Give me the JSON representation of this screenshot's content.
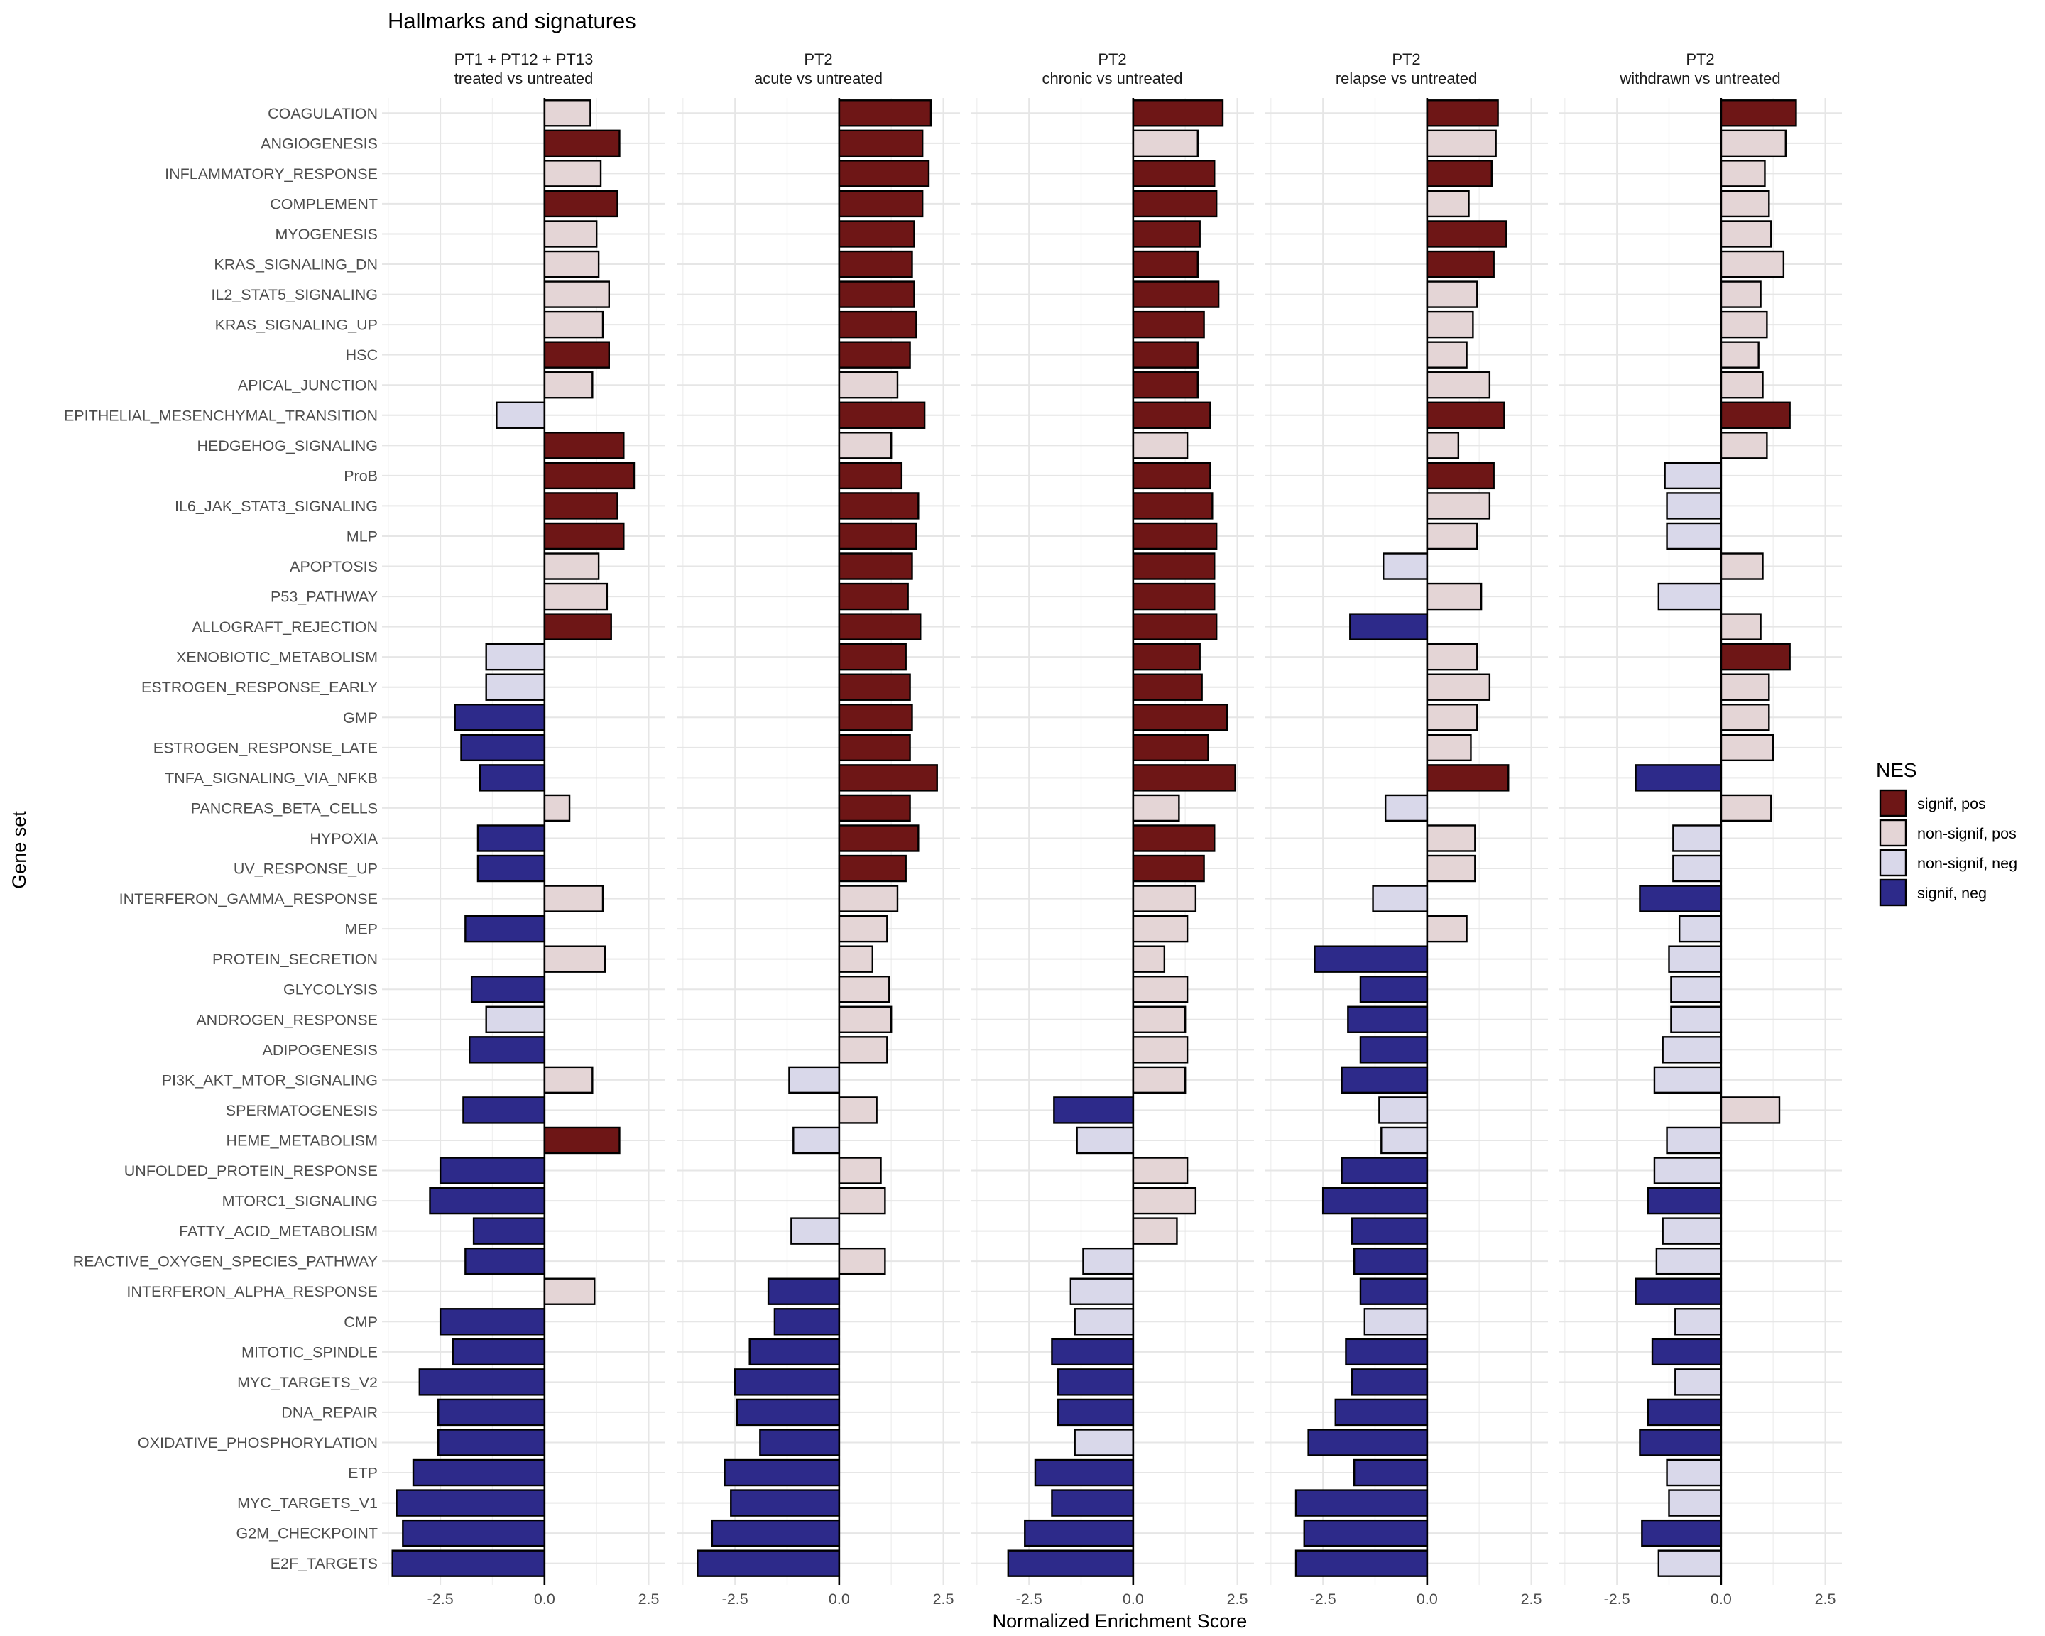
{
  "chart_data": {
    "type": "bar",
    "orientation": "horizontal",
    "title": "Hallmarks and signatures",
    "xlabel": "Normalized Enrichment Score",
    "ylabel": "Gene set",
    "xlim": [
      -3.9,
      2.9
    ],
    "x_ticks": [
      -2.5,
      0,
      2.5
    ],
    "x_tick_labels": [
      "-2.5",
      "0.0",
      "2.5"
    ],
    "legend": {
      "title": "NES",
      "position": "right",
      "entries": [
        {
          "key": "sp",
          "label": "signif, pos",
          "color": "#6e1616"
        },
        {
          "key": "np",
          "label": "non-signif, pos",
          "color": "#e4d5d6"
        },
        {
          "key": "nn",
          "label": "non-signif, neg",
          "color": "#d9d8ea"
        },
        {
          "key": "sn",
          "label": "signif, neg",
          "color": "#2d2a8a"
        }
      ]
    },
    "categories": [
      "COAGULATION",
      "ANGIOGENESIS",
      "INFLAMMATORY_RESPONSE",
      "COMPLEMENT",
      "MYOGENESIS",
      "KRAS_SIGNALING_DN",
      "IL2_STAT5_SIGNALING",
      "KRAS_SIGNALING_UP",
      "HSC",
      "APICAL_JUNCTION",
      "EPITHELIAL_MESENCHYMAL_TRANSITION",
      "HEDGEHOG_SIGNALING",
      "ProB",
      "IL6_JAK_STAT3_SIGNALING",
      "MLP",
      "APOPTOSIS",
      "P53_PATHWAY",
      "ALLOGRAFT_REJECTION",
      "XENOBIOTIC_METABOLISM",
      "ESTROGEN_RESPONSE_EARLY",
      "GMP",
      "ESTROGEN_RESPONSE_LATE",
      "TNFA_SIGNALING_VIA_NFKB",
      "PANCREAS_BETA_CELLS",
      "HYPOXIA",
      "UV_RESPONSE_UP",
      "INTERFERON_GAMMA_RESPONSE",
      "MEP",
      "PROTEIN_SECRETION",
      "GLYCOLYSIS",
      "ANDROGEN_RESPONSE",
      "ADIPOGENESIS",
      "PI3K_AKT_MTOR_SIGNALING",
      "SPERMATOGENESIS",
      "HEME_METABOLISM",
      "UNFOLDED_PROTEIN_RESPONSE",
      "MTORC1_SIGNALING",
      "FATTY_ACID_METABOLISM",
      "REACTIVE_OXYGEN_SPECIES_PATHWAY",
      "INTERFERON_ALPHA_RESPONSE",
      "CMP",
      "MITOTIC_SPINDLE",
      "MYC_TARGETS_V2",
      "DNA_REPAIR",
      "OXIDATIVE_PHOSPHORYLATION",
      "ETP",
      "MYC_TARGETS_V1",
      "G2M_CHECKPOINT",
      "E2F_TARGETS"
    ],
    "series": [
      {
        "name": "PT1 + PT12 + PT13 treated vs untreated",
        "strip_line1": "PT1 + PT12 + PT13",
        "strip_line2": "treated vs untreated",
        "values": [
          1.1,
          1.8,
          1.35,
          1.75,
          1.25,
          1.3,
          1.55,
          1.4,
          1.55,
          1.15,
          -1.15,
          1.9,
          2.15,
          1.75,
          1.9,
          1.3,
          1.5,
          1.6,
          -1.4,
          -1.4,
          -2.15,
          -2.0,
          -1.55,
          0.6,
          -1.6,
          -1.6,
          1.4,
          -1.9,
          1.45,
          -1.75,
          -1.4,
          -1.8,
          1.15,
          -1.95,
          1.8,
          -2.5,
          -2.75,
          -1.7,
          -1.9,
          1.2,
          -2.5,
          -2.2,
          -3.0,
          -2.55,
          -2.55,
          -3.15,
          -3.55,
          -3.4,
          -3.65
        ],
        "status": [
          "np",
          "sp",
          "np",
          "sp",
          "np",
          "np",
          "np",
          "np",
          "sp",
          "np",
          "nn",
          "sp",
          "sp",
          "sp",
          "sp",
          "np",
          "np",
          "sp",
          "nn",
          "nn",
          "sn",
          "sn",
          "sn",
          "np",
          "sn",
          "sn",
          "np",
          "sn",
          "np",
          "sn",
          "nn",
          "sn",
          "np",
          "sn",
          "sp",
          "sn",
          "sn",
          "sn",
          "sn",
          "np",
          "sn",
          "sn",
          "sn",
          "sn",
          "sn",
          "sn",
          "sn",
          "sn",
          "sn"
        ]
      },
      {
        "name": "PT2 acute vs untreated",
        "strip_line1": "PT2",
        "strip_line2": "acute vs untreated",
        "values": [
          2.2,
          2.0,
          2.15,
          2.0,
          1.8,
          1.75,
          1.8,
          1.85,
          1.7,
          1.4,
          2.05,
          1.25,
          1.5,
          1.9,
          1.85,
          1.75,
          1.65,
          1.95,
          1.6,
          1.7,
          1.75,
          1.7,
          2.35,
          1.7,
          1.9,
          1.6,
          1.4,
          1.15,
          0.8,
          1.2,
          1.25,
          1.15,
          -1.2,
          0.9,
          -1.1,
          1.0,
          1.1,
          -1.15,
          1.1,
          -1.7,
          -1.55,
          -2.15,
          -2.5,
          -2.45,
          -1.9,
          -2.75,
          -2.6,
          -3.05,
          -3.4
        ],
        "status": [
          "sp",
          "sp",
          "sp",
          "sp",
          "sp",
          "sp",
          "sp",
          "sp",
          "sp",
          "np",
          "sp",
          "np",
          "sp",
          "sp",
          "sp",
          "sp",
          "sp",
          "sp",
          "sp",
          "sp",
          "sp",
          "sp",
          "sp",
          "sp",
          "sp",
          "sp",
          "np",
          "np",
          "np",
          "np",
          "np",
          "np",
          "nn",
          "np",
          "nn",
          "np",
          "np",
          "nn",
          "np",
          "sn",
          "sn",
          "sn",
          "sn",
          "sn",
          "sn",
          "sn",
          "sn",
          "sn",
          "sn"
        ]
      },
      {
        "name": "PT2 chronic vs untreated",
        "strip_line1": "PT2",
        "strip_line2": "chronic vs untreated",
        "values": [
          2.15,
          1.55,
          1.95,
          2.0,
          1.6,
          1.55,
          2.05,
          1.7,
          1.55,
          1.55,
          1.85,
          1.3,
          1.85,
          1.9,
          2.0,
          1.95,
          1.95,
          2.0,
          1.6,
          1.65,
          2.25,
          1.8,
          2.45,
          1.1,
          1.95,
          1.7,
          1.5,
          1.3,
          0.75,
          1.3,
          1.25,
          1.3,
          1.25,
          -1.9,
          -1.35,
          1.3,
          1.5,
          1.05,
          -1.2,
          -1.5,
          -1.4,
          -1.95,
          -1.8,
          -1.8,
          -1.4,
          -2.35,
          -1.95,
          -2.6,
          -3.0
        ],
        "status": [
          "sp",
          "np",
          "sp",
          "sp",
          "sp",
          "sp",
          "sp",
          "sp",
          "sp",
          "sp",
          "sp",
          "np",
          "sp",
          "sp",
          "sp",
          "sp",
          "sp",
          "sp",
          "sp",
          "sp",
          "sp",
          "sp",
          "sp",
          "np",
          "sp",
          "sp",
          "np",
          "np",
          "np",
          "np",
          "np",
          "np",
          "np",
          "sn",
          "nn",
          "np",
          "np",
          "np",
          "nn",
          "nn",
          "nn",
          "sn",
          "sn",
          "sn",
          "nn",
          "sn",
          "sn",
          "sn",
          "sn"
        ]
      },
      {
        "name": "PT2 relapse vs untreated",
        "strip_line1": "PT2",
        "strip_line2": "relapse vs untreated",
        "values": [
          1.7,
          1.65,
          1.55,
          1.0,
          1.9,
          1.6,
          1.2,
          1.1,
          0.95,
          1.5,
          1.85,
          0.75,
          1.6,
          1.5,
          1.2,
          -1.05,
          1.3,
          -1.85,
          1.2,
          1.5,
          1.2,
          1.05,
          1.95,
          -1.0,
          1.15,
          1.15,
          -1.3,
          0.95,
          -2.7,
          -1.6,
          -1.9,
          -1.6,
          -2.05,
          -1.15,
          -1.1,
          -2.05,
          -2.5,
          -1.8,
          -1.75,
          -1.6,
          -1.5,
          -1.95,
          -1.8,
          -2.2,
          -2.85,
          -1.75,
          -3.15,
          -2.95,
          -3.15
        ],
        "status": [
          "sp",
          "np",
          "sp",
          "np",
          "sp",
          "sp",
          "np",
          "np",
          "np",
          "np",
          "sp",
          "np",
          "sp",
          "np",
          "np",
          "nn",
          "np",
          "sn",
          "np",
          "np",
          "np",
          "np",
          "sp",
          "nn",
          "np",
          "np",
          "nn",
          "np",
          "sn",
          "sn",
          "sn",
          "sn",
          "sn",
          "nn",
          "nn",
          "sn",
          "sn",
          "sn",
          "sn",
          "sn",
          "nn",
          "sn",
          "sn",
          "sn",
          "sn",
          "sn",
          "sn",
          "sn",
          "sn"
        ]
      },
      {
        "name": "PT2 withdrawn vs untreated",
        "strip_line1": "PT2",
        "strip_line2": "withdrawn vs untreated",
        "values": [
          1.8,
          1.55,
          1.05,
          1.15,
          1.2,
          1.5,
          0.95,
          1.1,
          0.9,
          1.0,
          1.65,
          1.1,
          -1.35,
          -1.3,
          -1.3,
          1.0,
          -1.5,
          0.95,
          1.65,
          1.15,
          1.15,
          1.25,
          -2.05,
          1.2,
          -1.15,
          -1.15,
          -1.95,
          -1.0,
          -1.25,
          -1.2,
          -1.2,
          -1.4,
          -1.6,
          1.4,
          -1.3,
          -1.6,
          -1.75,
          -1.4,
          -1.55,
          -2.05,
          -1.1,
          -1.65,
          -1.1,
          -1.75,
          -1.95,
          -1.3,
          -1.25,
          -1.9,
          -1.5
        ],
        "status": [
          "sp",
          "np",
          "np",
          "np",
          "np",
          "np",
          "np",
          "np",
          "np",
          "np",
          "sp",
          "np",
          "nn",
          "nn",
          "nn",
          "np",
          "nn",
          "np",
          "sp",
          "np",
          "np",
          "np",
          "sn",
          "np",
          "nn",
          "nn",
          "sn",
          "nn",
          "nn",
          "nn",
          "nn",
          "nn",
          "nn",
          "np",
          "nn",
          "nn",
          "sn",
          "nn",
          "nn",
          "sn",
          "nn",
          "sn",
          "nn",
          "sn",
          "sn",
          "nn",
          "nn",
          "sn",
          "nn"
        ]
      }
    ]
  }
}
